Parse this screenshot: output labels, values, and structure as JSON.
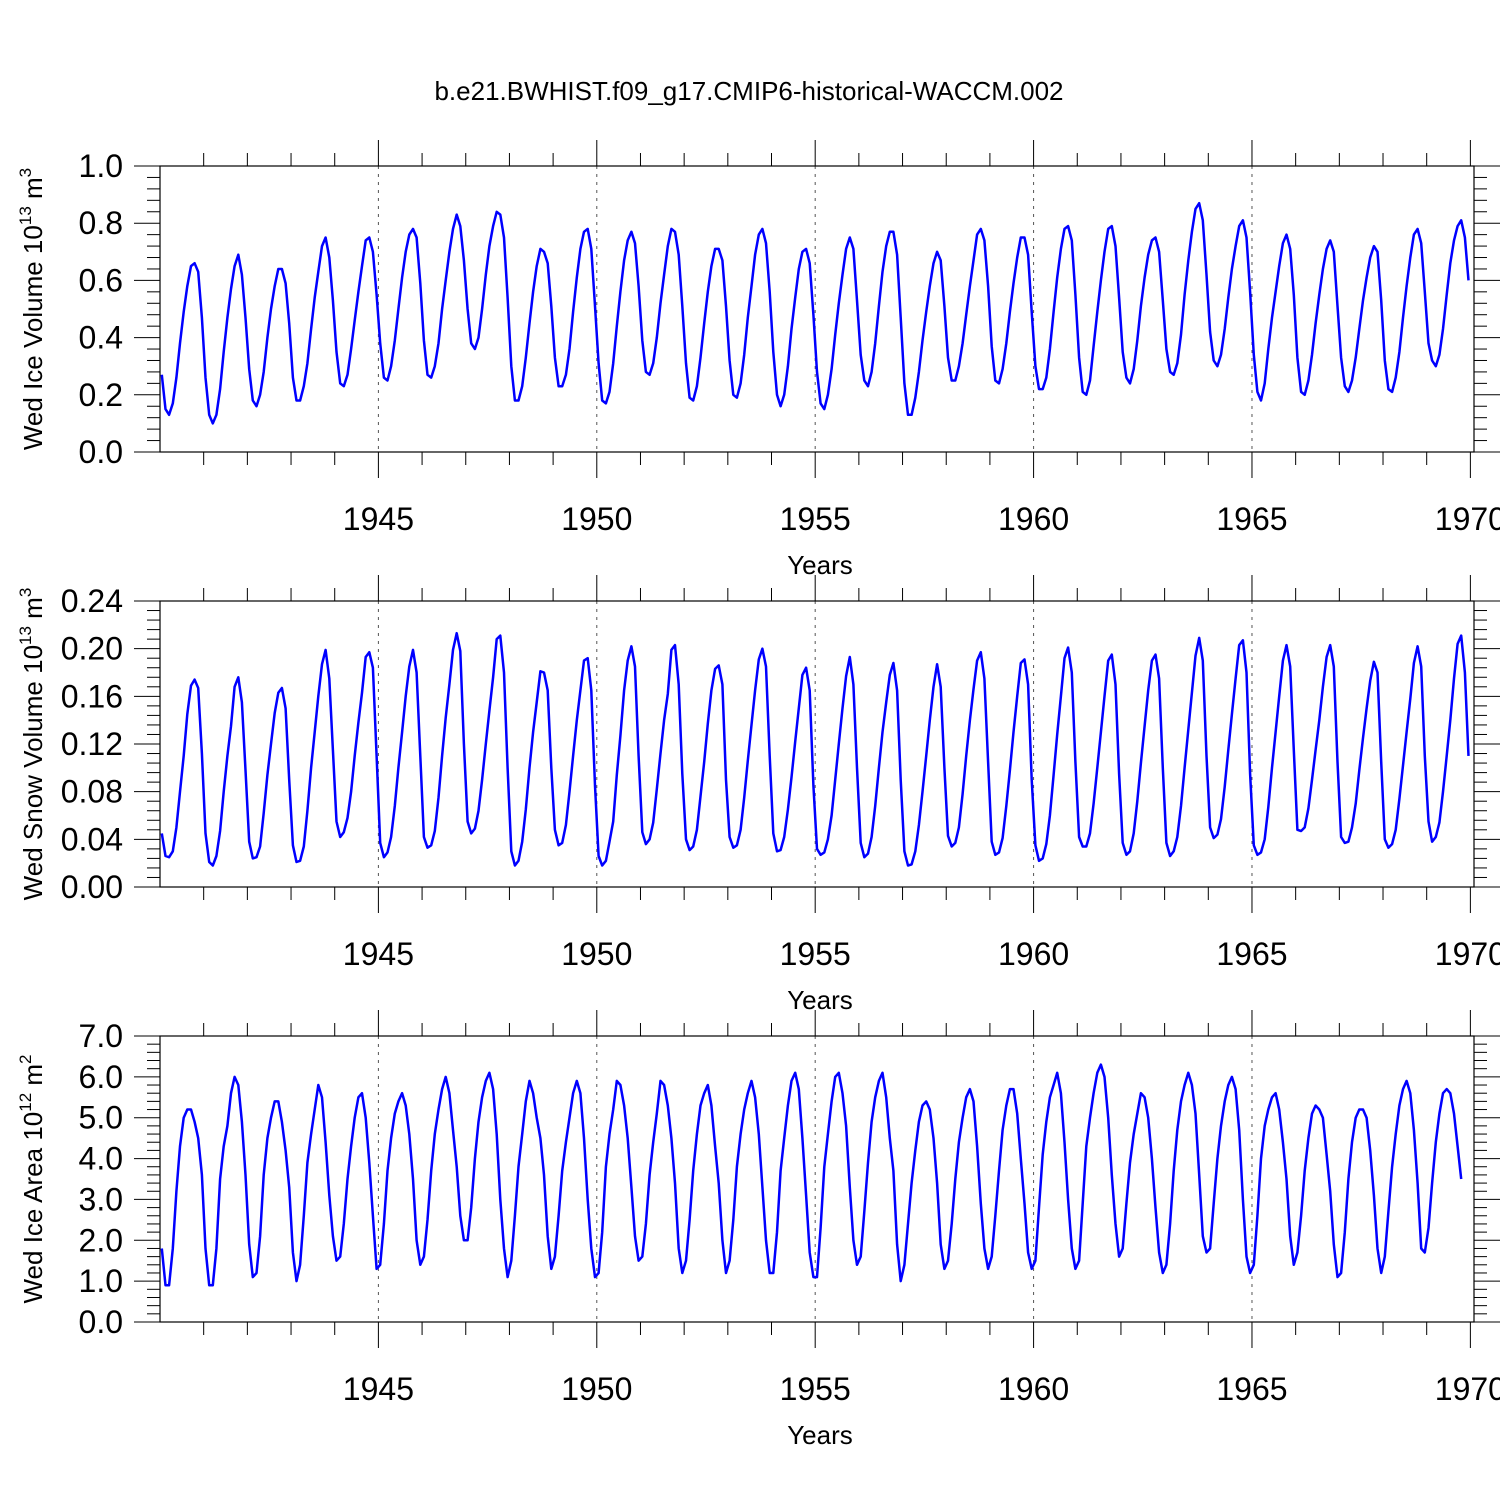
{
  "figure_title": "b.e21.BWHIST.f09_g17.CMIP6-historical-WACCM.002",
  "line_color": "#0000ff",
  "chart_data": [
    {
      "type": "line",
      "name": "ice-volume",
      "ylabel": {
        "prefix": "Wed Ice Volume 10",
        "exp": "13",
        "unit": "m",
        "unit_exp": "3"
      },
      "xlabel": "Years",
      "xlim": [
        1940.0,
        1970.083
      ],
      "ylim": [
        0,
        1.0
      ],
      "yticks": [
        "0.0",
        "0.2",
        "0.4",
        "0.6",
        "0.8",
        "1.0"
      ],
      "xticks": [
        "1945",
        "1950",
        "1955",
        "1960",
        "1965",
        "1970"
      ],
      "x_start": 1940.042,
      "x_step": 0.08333,
      "values": [
        0.27,
        0.15,
        0.13,
        0.17,
        0.26,
        0.38,
        0.49,
        0.58,
        0.65,
        0.66,
        0.63,
        0.47,
        0.26,
        0.13,
        0.1,
        0.13,
        0.22,
        0.35,
        0.47,
        0.57,
        0.65,
        0.69,
        0.62,
        0.47,
        0.29,
        0.18,
        0.16,
        0.2,
        0.28,
        0.4,
        0.5,
        0.58,
        0.64,
        0.64,
        0.59,
        0.45,
        0.26,
        0.18,
        0.18,
        0.23,
        0.31,
        0.43,
        0.54,
        0.63,
        0.72,
        0.75,
        0.68,
        0.53,
        0.35,
        0.24,
        0.23,
        0.27,
        0.36,
        0.46,
        0.56,
        0.65,
        0.74,
        0.75,
        0.7,
        0.55,
        0.38,
        0.26,
        0.25,
        0.3,
        0.39,
        0.5,
        0.61,
        0.7,
        0.76,
        0.78,
        0.75,
        0.59,
        0.39,
        0.27,
        0.26,
        0.3,
        0.38,
        0.5,
        0.6,
        0.7,
        0.78,
        0.83,
        0.79,
        0.67,
        0.5,
        0.38,
        0.36,
        0.4,
        0.5,
        0.62,
        0.72,
        0.79,
        0.84,
        0.83,
        0.75,
        0.54,
        0.3,
        0.18,
        0.18,
        0.23,
        0.33,
        0.45,
        0.56,
        0.65,
        0.71,
        0.7,
        0.66,
        0.51,
        0.33,
        0.23,
        0.23,
        0.27,
        0.36,
        0.49,
        0.61,
        0.71,
        0.77,
        0.78,
        0.71,
        0.51,
        0.31,
        0.18,
        0.17,
        0.21,
        0.31,
        0.44,
        0.56,
        0.67,
        0.74,
        0.77,
        0.73,
        0.58,
        0.39,
        0.28,
        0.27,
        0.31,
        0.4,
        0.52,
        0.62,
        0.72,
        0.78,
        0.77,
        0.69,
        0.51,
        0.31,
        0.19,
        0.18,
        0.23,
        0.33,
        0.45,
        0.56,
        0.65,
        0.71,
        0.71,
        0.67,
        0.51,
        0.32,
        0.2,
        0.19,
        0.24,
        0.34,
        0.47,
        0.58,
        0.69,
        0.76,
        0.78,
        0.73,
        0.56,
        0.35,
        0.2,
        0.16,
        0.2,
        0.3,
        0.43,
        0.54,
        0.64,
        0.7,
        0.71,
        0.66,
        0.48,
        0.28,
        0.17,
        0.15,
        0.2,
        0.29,
        0.41,
        0.52,
        0.62,
        0.71,
        0.75,
        0.71,
        0.53,
        0.34,
        0.25,
        0.23,
        0.28,
        0.38,
        0.51,
        0.63,
        0.72,
        0.77,
        0.77,
        0.69,
        0.47,
        0.24,
        0.13,
        0.13,
        0.19,
        0.28,
        0.39,
        0.49,
        0.58,
        0.66,
        0.7,
        0.67,
        0.51,
        0.33,
        0.25,
        0.25,
        0.3,
        0.38,
        0.48,
        0.58,
        0.67,
        0.76,
        0.78,
        0.74,
        0.58,
        0.37,
        0.25,
        0.24,
        0.29,
        0.38,
        0.49,
        0.59,
        0.68,
        0.75,
        0.75,
        0.69,
        0.49,
        0.3,
        0.22,
        0.22,
        0.26,
        0.36,
        0.49,
        0.61,
        0.71,
        0.78,
        0.79,
        0.74,
        0.55,
        0.33,
        0.21,
        0.2,
        0.25,
        0.37,
        0.49,
        0.6,
        0.7,
        0.78,
        0.79,
        0.72,
        0.54,
        0.35,
        0.26,
        0.24,
        0.29,
        0.39,
        0.51,
        0.61,
        0.69,
        0.74,
        0.75,
        0.7,
        0.53,
        0.36,
        0.28,
        0.27,
        0.31,
        0.41,
        0.55,
        0.67,
        0.77,
        0.85,
        0.87,
        0.81,
        0.62,
        0.42,
        0.32,
        0.3,
        0.34,
        0.43,
        0.54,
        0.64,
        0.72,
        0.79,
        0.81,
        0.75,
        0.56,
        0.34,
        0.21,
        0.18,
        0.24,
        0.36,
        0.47,
        0.56,
        0.65,
        0.73,
        0.76,
        0.71,
        0.55,
        0.33,
        0.21,
        0.2,
        0.25,
        0.34,
        0.45,
        0.55,
        0.64,
        0.71,
        0.74,
        0.7,
        0.51,
        0.33,
        0.23,
        0.21,
        0.25,
        0.33,
        0.43,
        0.53,
        0.61,
        0.68,
        0.72,
        0.7,
        0.53,
        0.32,
        0.22,
        0.21,
        0.26,
        0.35,
        0.47,
        0.58,
        0.68,
        0.76,
        0.78,
        0.73,
        0.56,
        0.38,
        0.32,
        0.3,
        0.34,
        0.43,
        0.55,
        0.66,
        0.74,
        0.79,
        0.81,
        0.75,
        0.6
      ]
    },
    {
      "type": "line",
      "name": "snow-volume",
      "ylabel": {
        "prefix": "Wed Snow Volume 10",
        "exp": "13",
        "unit": "m",
        "unit_exp": "3"
      },
      "xlabel": "Years",
      "xlim": [
        1940.0,
        1970.083
      ],
      "ylim": [
        0,
        0.24
      ],
      "yticks": [
        "0.00",
        "0.04",
        "0.08",
        "0.12",
        "0.16",
        "0.20",
        "0.24"
      ],
      "xticks": [
        "1945",
        "1950",
        "1955",
        "1960",
        "1965",
        "1970"
      ],
      "x_start": 1940.042,
      "x_step": 0.08333,
      "values": [
        0.045,
        0.026,
        0.025,
        0.03,
        0.05,
        0.08,
        0.11,
        0.145,
        0.169,
        0.174,
        0.167,
        0.112,
        0.045,
        0.021,
        0.018,
        0.026,
        0.047,
        0.08,
        0.11,
        0.135,
        0.168,
        0.176,
        0.155,
        0.098,
        0.038,
        0.024,
        0.025,
        0.034,
        0.062,
        0.094,
        0.12,
        0.146,
        0.163,
        0.167,
        0.15,
        0.09,
        0.035,
        0.021,
        0.022,
        0.034,
        0.064,
        0.1,
        0.13,
        0.16,
        0.187,
        0.199,
        0.175,
        0.115,
        0.055,
        0.042,
        0.046,
        0.058,
        0.08,
        0.11,
        0.138,
        0.163,
        0.193,
        0.197,
        0.184,
        0.11,
        0.037,
        0.025,
        0.029,
        0.042,
        0.068,
        0.1,
        0.13,
        0.16,
        0.185,
        0.199,
        0.18,
        0.11,
        0.042,
        0.033,
        0.035,
        0.047,
        0.075,
        0.11,
        0.142,
        0.17,
        0.199,
        0.213,
        0.198,
        0.12,
        0.055,
        0.045,
        0.049,
        0.064,
        0.09,
        0.12,
        0.148,
        0.176,
        0.208,
        0.211,
        0.18,
        0.1,
        0.03,
        0.018,
        0.022,
        0.038,
        0.065,
        0.1,
        0.13,
        0.155,
        0.181,
        0.18,
        0.165,
        0.1,
        0.048,
        0.035,
        0.037,
        0.052,
        0.08,
        0.11,
        0.14,
        0.165,
        0.19,
        0.192,
        0.165,
        0.085,
        0.026,
        0.018,
        0.022,
        0.038,
        0.055,
        0.094,
        0.127,
        0.165,
        0.19,
        0.202,
        0.185,
        0.11,
        0.046,
        0.036,
        0.04,
        0.054,
        0.082,
        0.112,
        0.14,
        0.162,
        0.199,
        0.203,
        0.17,
        0.095,
        0.04,
        0.031,
        0.034,
        0.048,
        0.076,
        0.105,
        0.137,
        0.165,
        0.183,
        0.186,
        0.17,
        0.09,
        0.042,
        0.033,
        0.035,
        0.048,
        0.075,
        0.106,
        0.136,
        0.165,
        0.191,
        0.2,
        0.185,
        0.11,
        0.045,
        0.03,
        0.031,
        0.042,
        0.065,
        0.092,
        0.122,
        0.15,
        0.178,
        0.184,
        0.165,
        0.085,
        0.032,
        0.027,
        0.029,
        0.04,
        0.06,
        0.09,
        0.12,
        0.15,
        0.177,
        0.193,
        0.17,
        0.1,
        0.037,
        0.025,
        0.028,
        0.042,
        0.068,
        0.1,
        0.13,
        0.155,
        0.178,
        0.188,
        0.165,
        0.09,
        0.03,
        0.018,
        0.019,
        0.03,
        0.052,
        0.08,
        0.11,
        0.14,
        0.168,
        0.187,
        0.168,
        0.1,
        0.043,
        0.034,
        0.037,
        0.05,
        0.078,
        0.11,
        0.14,
        0.166,
        0.19,
        0.197,
        0.175,
        0.105,
        0.038,
        0.027,
        0.029,
        0.041,
        0.068,
        0.098,
        0.13,
        0.16,
        0.188,
        0.191,
        0.17,
        0.09,
        0.035,
        0.022,
        0.024,
        0.036,
        0.06,
        0.094,
        0.128,
        0.16,
        0.192,
        0.201,
        0.18,
        0.105,
        0.042,
        0.034,
        0.034,
        0.045,
        0.07,
        0.1,
        0.13,
        0.16,
        0.19,
        0.195,
        0.17,
        0.095,
        0.037,
        0.027,
        0.03,
        0.045,
        0.072,
        0.104,
        0.135,
        0.165,
        0.19,
        0.195,
        0.175,
        0.1,
        0.037,
        0.026,
        0.03,
        0.042,
        0.068,
        0.1,
        0.132,
        0.163,
        0.194,
        0.209,
        0.19,
        0.11,
        0.05,
        0.041,
        0.044,
        0.057,
        0.084,
        0.115,
        0.145,
        0.175,
        0.203,
        0.207,
        0.18,
        0.095,
        0.035,
        0.027,
        0.029,
        0.04,
        0.067,
        0.1,
        0.13,
        0.16,
        0.19,
        0.203,
        0.185,
        0.115,
        0.048,
        0.047,
        0.05,
        0.066,
        0.09,
        0.115,
        0.14,
        0.168,
        0.193,
        0.203,
        0.185,
        0.105,
        0.042,
        0.037,
        0.038,
        0.05,
        0.07,
        0.098,
        0.125,
        0.15,
        0.173,
        0.189,
        0.18,
        0.105,
        0.04,
        0.033,
        0.036,
        0.048,
        0.074,
        0.102,
        0.13,
        0.158,
        0.188,
        0.202,
        0.185,
        0.11,
        0.055,
        0.038,
        0.042,
        0.054,
        0.08,
        0.11,
        0.14,
        0.175,
        0.204,
        0.211,
        0.18,
        0.11
      ]
    },
    {
      "type": "line",
      "name": "ice-area",
      "ylabel": {
        "prefix": "Wed Ice Area 10",
        "exp": "12",
        "unit": "m",
        "unit_exp": "2"
      },
      "xlabel": "Years",
      "xlim": [
        1940.0,
        1970.083
      ],
      "ylim": [
        0,
        7.0
      ],
      "yticks": [
        "0.0",
        "1.0",
        "2.0",
        "3.0",
        "4.0",
        "5.0",
        "6.0",
        "7.0"
      ],
      "xticks": [
        "1945",
        "1950",
        "1955",
        "1960",
        "1965",
        "1970"
      ],
      "x_start": 1940.042,
      "x_step": 0.08333,
      "values": [
        1.8,
        0.9,
        0.9,
        1.8,
        3.2,
        4.3,
        5.0,
        5.2,
        5.2,
        4.9,
        4.5,
        3.6,
        1.8,
        0.9,
        0.9,
        1.8,
        3.5,
        4.3,
        4.8,
        5.6,
        6.0,
        5.8,
        4.9,
        3.6,
        1.9,
        1.1,
        1.2,
        2.1,
        3.6,
        4.5,
        5.0,
        5.4,
        5.4,
        4.9,
        4.2,
        3.3,
        1.7,
        1.0,
        1.4,
        2.6,
        3.9,
        4.6,
        5.2,
        5.8,
        5.5,
        4.4,
        3.1,
        2.1,
        1.5,
        1.6,
        2.4,
        3.5,
        4.3,
        5.0,
        5.5,
        5.6,
        5.0,
        3.9,
        2.6,
        1.3,
        1.4,
        2.4,
        3.7,
        4.5,
        5.1,
        5.4,
        5.6,
        5.3,
        4.6,
        3.5,
        2.0,
        1.4,
        1.6,
        2.5,
        3.7,
        4.6,
        5.2,
        5.7,
        6.0,
        5.6,
        4.7,
        3.8,
        2.6,
        2.0,
        2.0,
        2.8,
        4.0,
        4.9,
        5.5,
        5.9,
        6.1,
        5.7,
        4.6,
        3.0,
        1.8,
        1.1,
        1.5,
        2.6,
        3.8,
        4.6,
        5.4,
        5.9,
        5.6,
        5.0,
        4.5,
        3.6,
        2.1,
        1.3,
        1.6,
        2.6,
        3.7,
        4.4,
        5.0,
        5.6,
        5.9,
        5.6,
        4.5,
        3.0,
        1.8,
        1.1,
        1.2,
        2.2,
        3.8,
        4.6,
        5.2,
        5.9,
        5.8,
        5.3,
        4.5,
        3.3,
        2.1,
        1.5,
        1.6,
        2.4,
        3.6,
        4.4,
        5.1,
        5.9,
        5.8,
        5.3,
        4.5,
        3.4,
        1.8,
        1.2,
        1.5,
        2.5,
        3.7,
        4.6,
        5.3,
        5.6,
        5.8,
        5.3,
        4.3,
        3.4,
        2.0,
        1.2,
        1.5,
        2.5,
        3.8,
        4.6,
        5.2,
        5.6,
        5.9,
        5.5,
        4.6,
        3.3,
        2.0,
        1.2,
        1.2,
        2.2,
        3.7,
        4.5,
        5.3,
        5.9,
        6.1,
        5.7,
        4.5,
        3.1,
        1.7,
        1.1,
        1.1,
        2.3,
        3.8,
        4.6,
        5.4,
        6.0,
        6.1,
        5.6,
        4.8,
        3.3,
        2.0,
        1.4,
        1.6,
        2.7,
        3.9,
        4.9,
        5.5,
        5.9,
        6.1,
        5.5,
        4.5,
        3.7,
        1.9,
        1.0,
        1.4,
        2.4,
        3.4,
        4.2,
        4.9,
        5.3,
        5.4,
        5.2,
        4.5,
        3.4,
        1.9,
        1.3,
        1.5,
        2.4,
        3.5,
        4.4,
        5.0,
        5.5,
        5.7,
        5.4,
        4.3,
        2.9,
        1.8,
        1.3,
        1.6,
        2.6,
        3.7,
        4.7,
        5.3,
        5.7,
        5.7,
        5.1,
        4.0,
        2.9,
        1.7,
        1.3,
        1.5,
        2.8,
        4.1,
        4.9,
        5.5,
        5.8,
        6.1,
        5.6,
        4.4,
        3.0,
        1.8,
        1.3,
        1.5,
        2.9,
        4.3,
        5.0,
        5.6,
        6.1,
        6.3,
        6.0,
        5.0,
        3.6,
        2.4,
        1.6,
        1.8,
        2.9,
        3.9,
        4.6,
        5.1,
        5.6,
        5.5,
        5.0,
        4.0,
        2.8,
        1.7,
        1.2,
        1.4,
        2.4,
        3.7,
        4.7,
        5.4,
        5.8,
        6.1,
        5.8,
        5.1,
        3.6,
        2.1,
        1.7,
        1.8,
        2.9,
        4.0,
        4.8,
        5.4,
        5.8,
        6.0,
        5.7,
        4.7,
        3.0,
        1.6,
        1.2,
        1.4,
        2.6,
        4.0,
        4.8,
        5.2,
        5.5,
        5.6,
        5.2,
        4.4,
        3.5,
        2.1,
        1.4,
        1.7,
        2.6,
        3.7,
        4.5,
        5.1,
        5.3,
        5.2,
        5.0,
        4.1,
        3.2,
        1.9,
        1.1,
        1.2,
        2.2,
        3.5,
        4.4,
        5.0,
        5.2,
        5.2,
        5.0,
        4.2,
        3.1,
        1.8,
        1.2,
        1.6,
        2.7,
        3.8,
        4.6,
        5.3,
        5.7,
        5.9,
        5.6,
        4.7,
        3.4,
        1.8,
        1.7,
        2.3,
        3.4,
        4.4,
        5.1,
        5.6,
        5.7,
        5.6,
        5.1,
        4.3,
        3.5
      ]
    }
  ]
}
